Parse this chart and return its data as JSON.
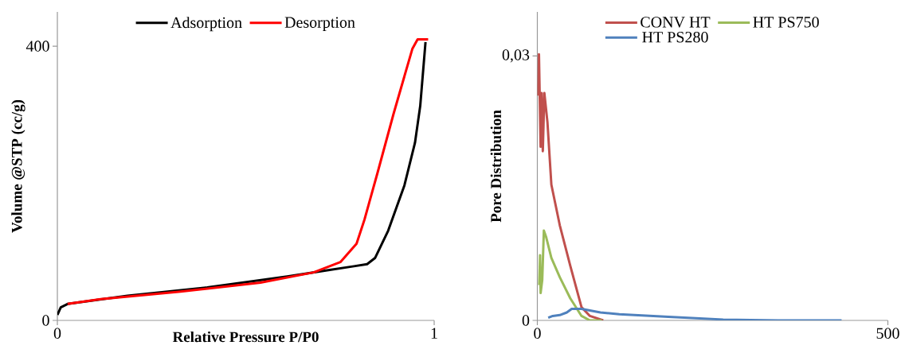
{
  "chart_data": [
    {
      "type": "line",
      "xlabel": "Relative Pressure P/P0",
      "ylabel": "Volume @STP (cc/g)",
      "xlim": [
        0,
        1
      ],
      "ylim": [
        0,
        450
      ],
      "xticks": [
        0,
        1
      ],
      "yticks": [
        0,
        400
      ],
      "legend": "top",
      "series": [
        {
          "name": "Adsorption",
          "color": "#000000",
          "x": [
            0,
            0.009,
            0.027,
            0.186,
            0.398,
            0.61,
            0.716,
            0.787,
            0.822,
            0.843,
            0.878,
            0.921,
            0.949,
            0.963,
            0.977
          ],
          "values": [
            8,
            19,
            24,
            36,
            48,
            64,
            73,
            79,
            82,
            91,
            131,
            197,
            259,
            313,
            406
          ]
        },
        {
          "name": "Desorption",
          "color": "#ff0000",
          "x": [
            0.984,
            0.956,
            0.942,
            0.892,
            0.85,
            0.815,
            0.794,
            0.751,
            0.68,
            0.539,
            0.327,
            0.115,
            0.027
          ],
          "values": [
            410,
            410,
            396,
            301,
            216,
            147,
            112,
            85,
            70,
            55,
            42,
            31,
            24
          ]
        }
      ]
    },
    {
      "type": "line",
      "ylabel": "Pore Distribution",
      "xlim": [
        0,
        500
      ],
      "ylim": [
        0,
        0.035
      ],
      "xticks": [
        0,
        500
      ],
      "yticks": [
        0,
        {
          "value": 0.03,
          "label": "0,03"
        }
      ],
      "legend": "top",
      "series": [
        {
          "name": "CONV HT",
          "color": "#c0504d",
          "x": [
            0.8,
            2.3,
            4.7,
            6.2,
            7.8,
            10,
            14.4,
            20,
            32,
            47,
            63,
            75,
            94
          ],
          "values": [
            0.0255,
            0.0302,
            0.0197,
            0.0258,
            0.0192,
            0.0258,
            0.0225,
            0.0154,
            0.0108,
            0.0062,
            0.0015,
            0.0005,
            0
          ]
        },
        {
          "name": "HT PS750",
          "color": "#9bbb59",
          "x": [
            2.7,
            3.9,
            4.7,
            7,
            9.3,
            12.4,
            20,
            32,
            47,
            63,
            75,
            92
          ],
          "values": [
            0.004,
            0.0074,
            0.0031,
            0.0046,
            0.0102,
            0.0095,
            0.0071,
            0.0049,
            0.0025,
            0.0005,
            0,
            0
          ]
        },
        {
          "name": "HT PS280",
          "color": "#4f81bd",
          "x": [
            15.5,
            22,
            32,
            42,
            49,
            63,
            90,
            117,
            187,
            265,
            343,
            434
          ],
          "values": [
            0.0003,
            0.0005,
            0.0006,
            0.0009,
            0.0013,
            0.0013,
            0.0009,
            0.0007,
            0.0004,
            0.0001,
            0,
            0
          ]
        }
      ]
    }
  ]
}
